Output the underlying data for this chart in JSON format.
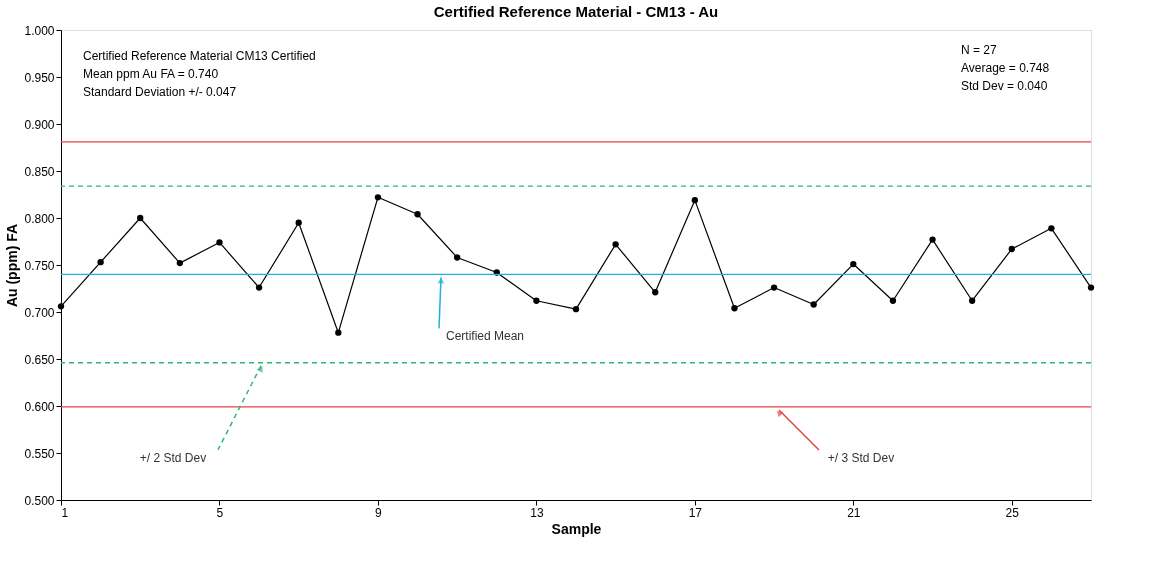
{
  "chart_data": {
    "type": "line",
    "title": "Certified Reference Material - CM13 - Au",
    "xlabel": "Sample",
    "ylabel": "Au (ppm) FA",
    "x": [
      1,
      2,
      3,
      4,
      5,
      6,
      7,
      8,
      9,
      10,
      11,
      12,
      13,
      14,
      15,
      16,
      17,
      18,
      19,
      20,
      21,
      22,
      23,
      24,
      25,
      26,
      27
    ],
    "series": [
      {
        "color": "#000000",
        "values": [
          0.706,
          0.753,
          0.8,
          0.752,
          0.774,
          0.726,
          0.795,
          0.678,
          0.822,
          0.804,
          0.758,
          0.742,
          0.712,
          0.703,
          0.772,
          0.721,
          0.819,
          0.704,
          0.726,
          0.708,
          0.751,
          0.712,
          0.777,
          0.712,
          0.767,
          0.789,
          0.726
        ]
      }
    ],
    "xlim": [
      1,
      27
    ],
    "xticks": [
      1,
      5,
      9,
      13,
      17,
      21,
      25
    ],
    "ylim": [
      0.5,
      1.0
    ],
    "yticks": [
      {
        "value": 0.5,
        "label": "0.500"
      },
      {
        "value": 0.55,
        "label": "0.550"
      },
      {
        "value": 0.6,
        "label": "0.600"
      },
      {
        "value": 0.65,
        "label": "0.650"
      },
      {
        "value": 0.7,
        "label": "0.700"
      },
      {
        "value": 0.75,
        "label": "0.750"
      },
      {
        "value": 0.8,
        "label": "0.800"
      },
      {
        "value": 0.85,
        "label": "0.850"
      },
      {
        "value": 0.9,
        "label": "0.900"
      },
      {
        "value": 0.95,
        "label": "0.950"
      },
      {
        "value": 1.0,
        "label": "1.000"
      }
    ],
    "ref_lines": [
      {
        "axis": "y",
        "value": 0.881,
        "color": "#e8423f",
        "line_style": "solid"
      },
      {
        "axis": "y",
        "value": 0.834,
        "color": "#2eb872",
        "line_style": "dashed"
      },
      {
        "axis": "y",
        "value": 0.74,
        "color": "#1fb3e0",
        "line_style": "solid",
        "label": "Certified Mean"
      },
      {
        "axis": "y",
        "value": 0.646,
        "color": "#2eb872",
        "line_style": "dashed",
        "label": "+/ 2 Std Dev"
      },
      {
        "axis": "y",
        "value": 0.599,
        "color": "#e8423f",
        "line_style": "solid",
        "label": "+/ 3 Std Dev"
      }
    ],
    "annotations": [
      "Certified Reference Material CM13        Certified",
      "Mean ppm Au FA  = 0.740",
      "Standard Deviation  +/- 0.047",
      "N = 27",
      "Average = 0.748",
      "Std Dev = 0.040"
    ],
    "grid": false,
    "marker": "circle",
    "line_style": "solid"
  }
}
